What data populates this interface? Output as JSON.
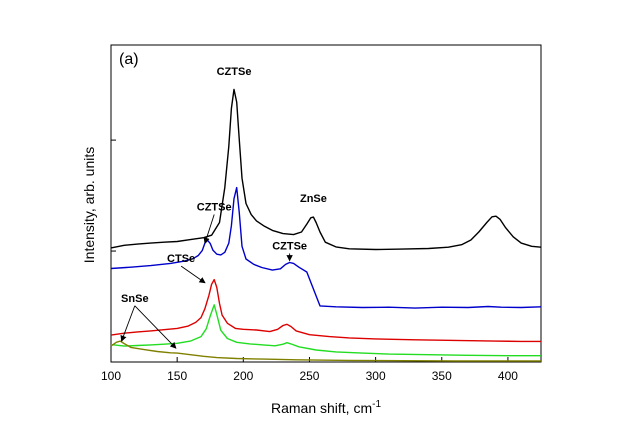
{
  "chart_data": {
    "type": "line",
    "panel_label": "(a)",
    "xlabel": "Raman shift, cm",
    "xlabel_superscript": "-1",
    "ylabel": "Intensity, arb. units",
    "xlim": [
      100,
      425
    ],
    "ylim": [
      0,
      100
    ],
    "xticks": [
      100,
      150,
      200,
      250,
      300,
      350,
      400
    ],
    "yticks": [
      0,
      35,
      70
    ],
    "grid": false,
    "legend": "none",
    "colors": [
      "#000000",
      "#0000cc",
      "#dd0000",
      "#22dd22",
      "#808000"
    ],
    "series": [
      {
        "color": "#000000",
        "points": [
          [
            100,
            36.0
          ],
          [
            110,
            36.8
          ],
          [
            120,
            37.2
          ],
          [
            130,
            37.5
          ],
          [
            140,
            37.8
          ],
          [
            150,
            38.0
          ],
          [
            160,
            38.6
          ],
          [
            170,
            39.2
          ],
          [
            176,
            40.0
          ],
          [
            182,
            44.0
          ],
          [
            186,
            55.0
          ],
          [
            189,
            68.0
          ],
          [
            191,
            80.0
          ],
          [
            193,
            86.0
          ],
          [
            195,
            82.0
          ],
          [
            197,
            70.0
          ],
          [
            199,
            58.0
          ],
          [
            202,
            50.0
          ],
          [
            206,
            46.5
          ],
          [
            210,
            44.5
          ],
          [
            216,
            42.8
          ],
          [
            222,
            41.5
          ],
          [
            230,
            40.5
          ],
          [
            238,
            40.2
          ],
          [
            244,
            41.0
          ],
          [
            248,
            43.5
          ],
          [
            251,
            45.5
          ],
          [
            253,
            45.7
          ],
          [
            255,
            44.0
          ],
          [
            258,
            41.0
          ],
          [
            262,
            37.8
          ],
          [
            270,
            36.3
          ],
          [
            280,
            35.7
          ],
          [
            300,
            35.5
          ],
          [
            320,
            35.6
          ],
          [
            340,
            35.8
          ],
          [
            355,
            36.2
          ],
          [
            365,
            37.0
          ],
          [
            372,
            38.5
          ],
          [
            378,
            41.0
          ],
          [
            384,
            44.0
          ],
          [
            388,
            45.8
          ],
          [
            391,
            46.0
          ],
          [
            394,
            45.0
          ],
          [
            398,
            42.5
          ],
          [
            404,
            39.5
          ],
          [
            410,
            37.5
          ],
          [
            418,
            36.5
          ],
          [
            425,
            36.2
          ]
        ]
      },
      {
        "color": "#0000cc",
        "points": [
          [
            100,
            29.5
          ],
          [
            115,
            29.9
          ],
          [
            130,
            30.4
          ],
          [
            145,
            31.1
          ],
          [
            155,
            31.8
          ],
          [
            162,
            32.6
          ],
          [
            166,
            33.6
          ],
          [
            169,
            35.2
          ],
          [
            171,
            37.5
          ],
          [
            173,
            38.4
          ],
          [
            175,
            37.4
          ],
          [
            177,
            35.3
          ],
          [
            180,
            34.0
          ],
          [
            183,
            33.8
          ],
          [
            186,
            34.6
          ],
          [
            189,
            37.5
          ],
          [
            191,
            43.0
          ],
          [
            193,
            51.5
          ],
          [
            195,
            55.0
          ],
          [
            197,
            47.0
          ],
          [
            199,
            36.5
          ],
          [
            202,
            32.5
          ],
          [
            208,
            30.8
          ],
          [
            214,
            29.8
          ],
          [
            222,
            29.0
          ],
          [
            228,
            29.4
          ],
          [
            232,
            30.8
          ],
          [
            235,
            31.4
          ],
          [
            238,
            31.1
          ],
          [
            242,
            29.9
          ],
          [
            248,
            28.4
          ],
          [
            258,
            17.7
          ],
          [
            270,
            17.4
          ],
          [
            290,
            17.2
          ],
          [
            310,
            17.3
          ],
          [
            330,
            17.0
          ],
          [
            350,
            17.3
          ],
          [
            370,
            17.2
          ],
          [
            385,
            17.5
          ],
          [
            395,
            17.3
          ],
          [
            410,
            17.2
          ],
          [
            425,
            17.4
          ]
        ]
      },
      {
        "color": "#dd0000",
        "points": [
          [
            100,
            8.5
          ],
          [
            110,
            9.1
          ],
          [
            120,
            9.5
          ],
          [
            130,
            9.8
          ],
          [
            140,
            10.2
          ],
          [
            150,
            10.6
          ],
          [
            158,
            11.3
          ],
          [
            164,
            12.5
          ],
          [
            168,
            14.0
          ],
          [
            171,
            16.8
          ],
          [
            174,
            21.0
          ],
          [
            176,
            24.5
          ],
          [
            178,
            26.0
          ],
          [
            180,
            23.5
          ],
          [
            182,
            18.5
          ],
          [
            184,
            14.8
          ],
          [
            188,
            12.2
          ],
          [
            194,
            10.6
          ],
          [
            200,
            10.3
          ],
          [
            210,
            10.1
          ],
          [
            220,
            9.6
          ],
          [
            226,
            10.3
          ],
          [
            230,
            11.5
          ],
          [
            233,
            11.9
          ],
          [
            236,
            11.2
          ],
          [
            240,
            9.8
          ],
          [
            250,
            8.6
          ],
          [
            265,
            8.0
          ],
          [
            280,
            7.6
          ],
          [
            300,
            7.3
          ],
          [
            330,
            7.0
          ],
          [
            360,
            6.8
          ],
          [
            390,
            6.6
          ],
          [
            410,
            6.5
          ],
          [
            425,
            6.5
          ]
        ]
      },
      {
        "color": "#22dd22",
        "points": [
          [
            100,
            5.5
          ],
          [
            110,
            5.0
          ],
          [
            120,
            5.2
          ],
          [
            130,
            5.4
          ],
          [
            140,
            5.6
          ],
          [
            150,
            5.9
          ],
          [
            160,
            6.6
          ],
          [
            168,
            8.0
          ],
          [
            172,
            10.5
          ],
          [
            175,
            14.5
          ],
          [
            178,
            18.0
          ],
          [
            180,
            15.0
          ],
          [
            183,
            10.0
          ],
          [
            188,
            7.4
          ],
          [
            195,
            6.2
          ],
          [
            205,
            5.7
          ],
          [
            215,
            5.4
          ],
          [
            224,
            5.1
          ],
          [
            230,
            5.6
          ],
          [
            233,
            6.1
          ],
          [
            236,
            5.7
          ],
          [
            242,
            4.8
          ],
          [
            255,
            3.8
          ],
          [
            270,
            3.2
          ],
          [
            290,
            2.8
          ],
          [
            310,
            2.5
          ],
          [
            340,
            2.3
          ],
          [
            370,
            2.1
          ],
          [
            400,
            2.0
          ],
          [
            425,
            2.0
          ]
        ]
      },
      {
        "color": "#808000",
        "points": [
          [
            100,
            5.0
          ],
          [
            104,
            6.2
          ],
          [
            107,
            6.6
          ],
          [
            110,
            5.8
          ],
          [
            115,
            4.6
          ],
          [
            125,
            3.9
          ],
          [
            135,
            3.3
          ],
          [
            145,
            2.9
          ],
          [
            150,
            2.8
          ],
          [
            160,
            2.3
          ],
          [
            170,
            1.8
          ],
          [
            180,
            1.4
          ],
          [
            195,
            1.1
          ],
          [
            215,
            0.9
          ],
          [
            240,
            0.7
          ],
          [
            280,
            0.5
          ],
          [
            320,
            0.4
          ],
          [
            360,
            0.3
          ],
          [
            400,
            0.3
          ],
          [
            425,
            0.3
          ]
        ]
      }
    ],
    "annotations": [
      {
        "id": "czts-top",
        "text": "CZTSe",
        "x": 193,
        "y": 90.5,
        "arrow": false
      },
      {
        "id": "znse",
        "text": "ZnSe",
        "x": 253,
        "y": 50.5,
        "arrow": false
      },
      {
        "id": "czts-blue-mid",
        "text": "CZTSe",
        "x": 235,
        "y": 35.5,
        "arrow": true,
        "arrow_to": [
          235,
          32.0
        ]
      },
      {
        "id": "czts-blue-left",
        "text": "CZTSe",
        "x": 178,
        "y": 47.8,
        "arrow": true,
        "arrow_to": [
          171,
          37.5
        ]
      },
      {
        "id": "ctse",
        "text": "CTSe",
        "x": 153,
        "y": 31.5,
        "arrow": true,
        "arrow_to": [
          171,
          25.0
        ]
      },
      {
        "id": "snse",
        "text": "SnSe",
        "x": 118,
        "y": 19.0,
        "arrow": true,
        "arrow_targets": [
          [
            108,
            6.6
          ],
          [
            149,
            4.4
          ]
        ]
      }
    ]
  }
}
